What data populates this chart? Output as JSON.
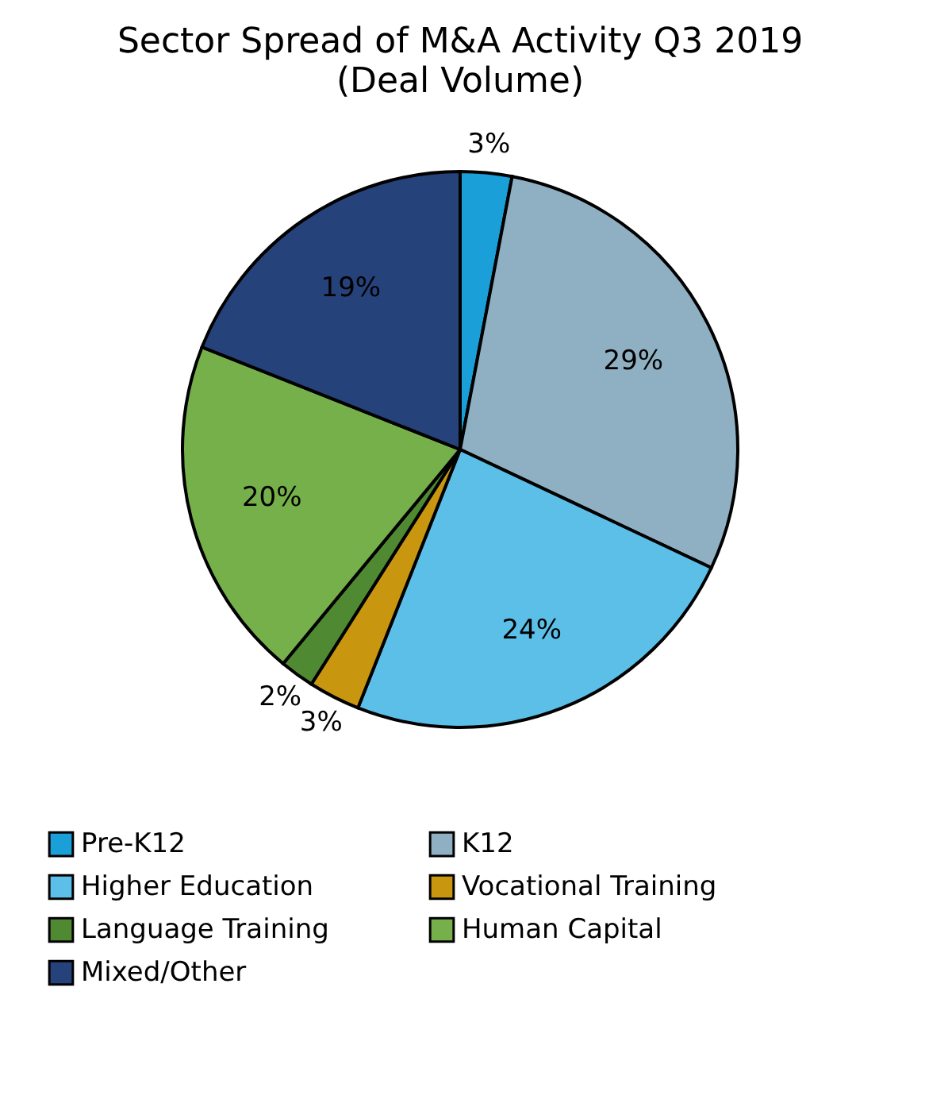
{
  "chart_data": {
    "type": "pie",
    "title": "Sector Spread of M&A Activity Q3 2019",
    "subtitle": "(Deal Volume)",
    "categories": [
      "Pre-K12",
      "K12",
      "Higher Education",
      "Vocational Training",
      "Language Training",
      "Human Capital",
      "Mixed/Other"
    ],
    "values": [
      3,
      29,
      24,
      3,
      2,
      20,
      19
    ],
    "colors": [
      "#1a9fd8",
      "#8fb0c2",
      "#5bbfe8",
      "#c8960f",
      "#4f8a32",
      "#76b04a",
      "#26427a"
    ],
    "value_labels": [
      "3%",
      "29%",
      "24%",
      "3%",
      "2%",
      "20%",
      "19%"
    ],
    "legend": "bottom"
  }
}
